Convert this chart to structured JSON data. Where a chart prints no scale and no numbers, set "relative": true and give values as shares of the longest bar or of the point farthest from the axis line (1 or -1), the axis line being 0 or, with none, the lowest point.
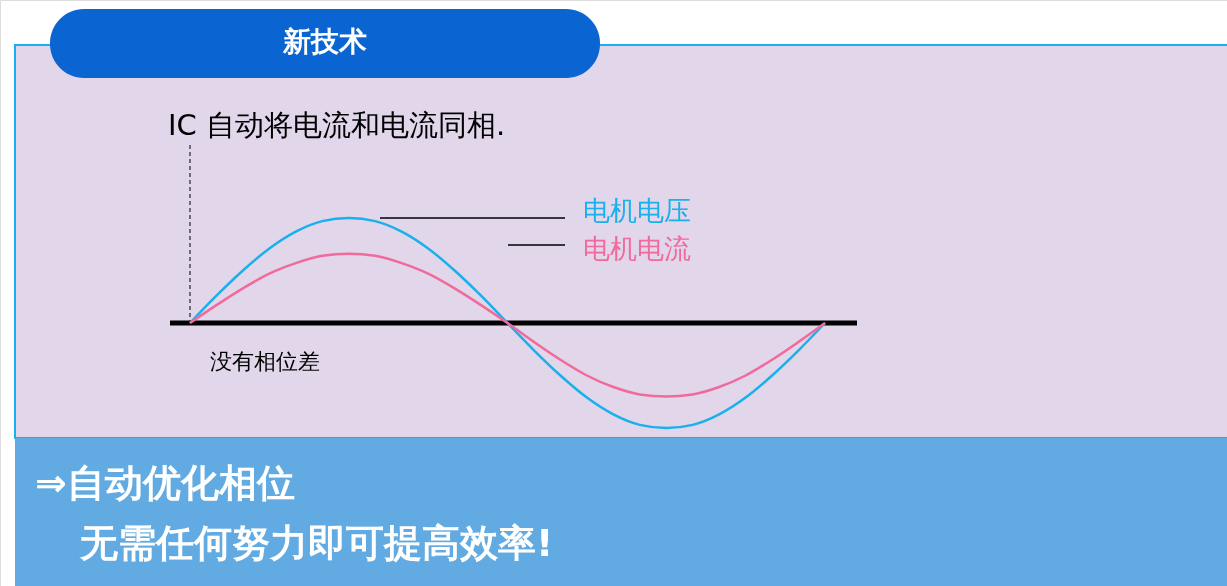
{
  "chart_data": {
    "type": "line",
    "title": "新技术",
    "categories": [
      null,
      null,
      null,
      null,
      null,
      null,
      null,
      null,
      null,
      null,
      null,
      null,
      null,
      null,
      null,
      null,
      null,
      null,
      null,
      null,
      null,
      null,
      null,
      null,
      null
    ],
    "series": [
      {
        "name": "电机电压",
        "color": "#1ab0ec",
        "values": [
          0,
          0.26,
          0.5,
          0.71,
          0.87,
          0.97,
          1,
          0.97,
          0.87,
          0.71,
          0.5,
          0.26,
          0,
          -0.26,
          -0.5,
          -0.71,
          -0.87,
          -0.97,
          -1,
          -0.97,
          -0.87,
          -0.71,
          -0.5,
          -0.26,
          0
        ]
      },
      {
        "name": "电机电流",
        "color": "#f06a9c",
        "values": [
          0,
          0.17,
          0.33,
          0.47,
          0.57,
          0.64,
          0.66,
          0.64,
          0.57,
          0.47,
          0.33,
          0.17,
          0,
          -0.18,
          -0.35,
          -0.5,
          -0.61,
          -0.68,
          -0.7,
          -0.68,
          -0.61,
          -0.5,
          -0.35,
          -0.18,
          0
        ]
      }
    ],
    "relative": true,
    "marker": "none",
    "line_style": "solid",
    "annotations": [
      "IC 自动将电流和电流同相.",
      "没有相位差",
      "⇒自动优化相位",
      "无需任何努力即可提高效率!"
    ]
  }
}
